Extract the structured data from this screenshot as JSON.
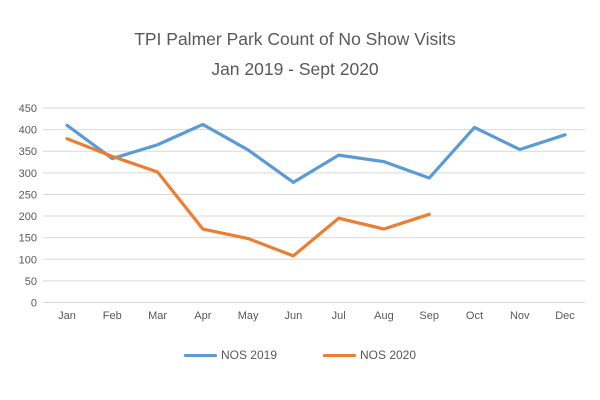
{
  "chart_data": {
    "type": "line",
    "title": "TPI Palmer Park Count of No Show Visits",
    "subtitle": "Jan 2019 - Sept 2020",
    "categories": [
      "Jan",
      "Feb",
      "Mar",
      "Apr",
      "May",
      "Jun",
      "Jul",
      "Aug",
      "Sep",
      "Oct",
      "Nov",
      "Dec"
    ],
    "series": [
      {
        "name": "NOS 2019",
        "color": "#5B9BD5",
        "values": [
          410,
          333,
          365,
          412,
          353,
          278,
          341,
          326,
          288,
          405,
          354,
          388
        ]
      },
      {
        "name": "NOS 2020",
        "color": "#ED7D31",
        "values": [
          379,
          338,
          302,
          170,
          148,
          108,
          195,
          170,
          204
        ]
      }
    ],
    "ylim": [
      0,
      450
    ],
    "ytick_step": 50,
    "yticks": [
      0,
      50,
      100,
      150,
      200,
      250,
      300,
      350,
      400,
      450
    ],
    "grid": true,
    "legend_position": "bottom",
    "gridline_color": "#D9D9D9",
    "text_color": "#595959"
  }
}
